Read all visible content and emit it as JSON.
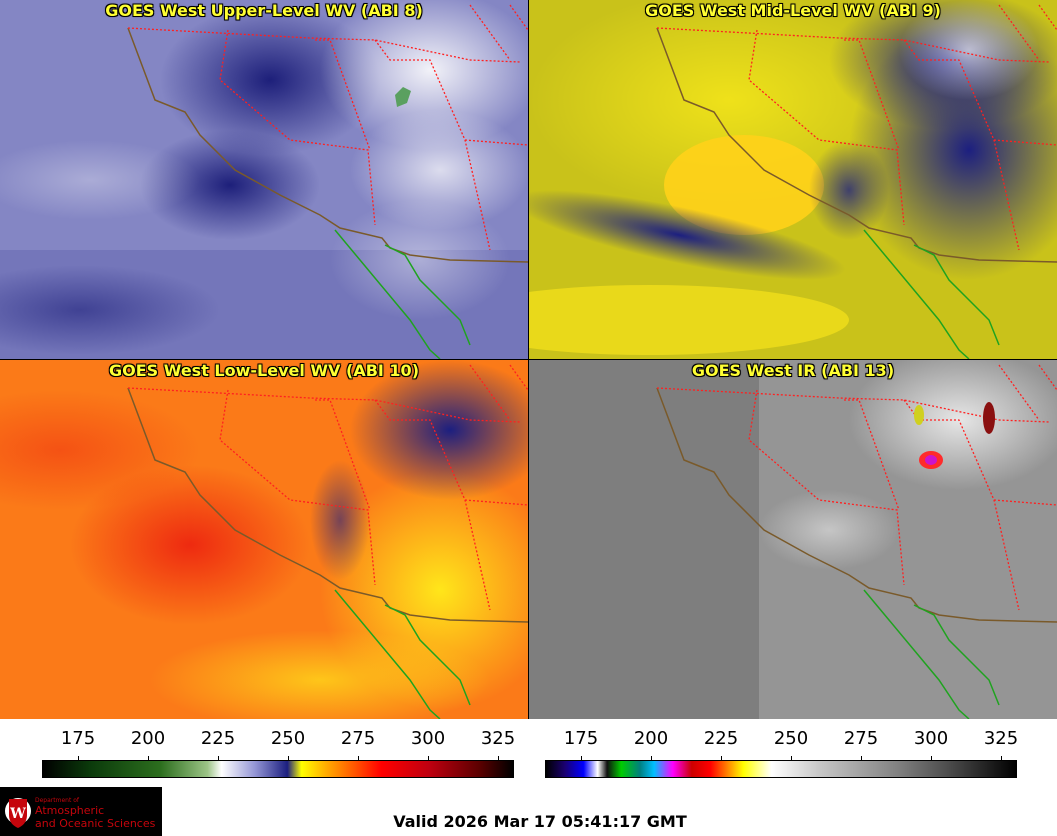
{
  "panels": [
    {
      "title": "GOES West Upper-Level WV (ABI 8)"
    },
    {
      "title": "GOES West Mid-Level WV (ABI 9)"
    },
    {
      "title": "GOES West Low-Level WV (ABI 10)"
    },
    {
      "title": "GOES West IR (ABI 13)"
    }
  ],
  "colorbars": [
    {
      "ticks": [
        "175",
        "200",
        "225",
        "250",
        "275",
        "300",
        "325"
      ]
    },
    {
      "ticks": [
        "175",
        "200",
        "225",
        "250",
        "275",
        "300",
        "325"
      ]
    }
  ],
  "logo": {
    "dept": "Department of",
    "line1": "Atmospheric",
    "line2": "and Oceanic Sciences"
  },
  "valid_time": "Valid 2026 Mar 17 05:41:17 GMT",
  "colors": {
    "title_text": "#ffff33",
    "state_border": "#ff2020",
    "coast_us": "#7a5a2a",
    "coast_mx": "#1fa31f"
  }
}
